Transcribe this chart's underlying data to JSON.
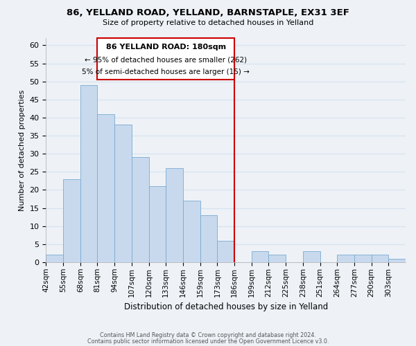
{
  "title": "86, YELLAND ROAD, YELLAND, BARNSTAPLE, EX31 3EF",
  "subtitle": "Size of property relative to detached houses in Yelland",
  "xlabel": "Distribution of detached houses by size in Yelland",
  "ylabel": "Number of detached properties",
  "bar_labels": [
    "42sqm",
    "55sqm",
    "68sqm",
    "81sqm",
    "94sqm",
    "107sqm",
    "120sqm",
    "133sqm",
    "146sqm",
    "159sqm",
    "173sqm",
    "186sqm",
    "199sqm",
    "212sqm",
    "225sqm",
    "238sqm",
    "251sqm",
    "264sqm",
    "277sqm",
    "290sqm",
    "303sqm"
  ],
  "bar_values": [
    2,
    23,
    49,
    41,
    38,
    29,
    21,
    26,
    17,
    13,
    6,
    0,
    3,
    2,
    0,
    3,
    0,
    2,
    2,
    2,
    1
  ],
  "bar_color": "#c8d9ee",
  "bar_edge_color": "#7aaad0",
  "background_color": "#eef2f7",
  "grid_color": "#d8e4f0",
  "vline_index": 11,
  "annotation_title": "86 YELLAND ROAD: 180sqm",
  "annotation_line1": "← 95% of detached houses are smaller (262)",
  "annotation_line2": "5% of semi-detached houses are larger (15) →",
  "footer1": "Contains HM Land Registry data © Crown copyright and database right 2024.",
  "footer2": "Contains public sector information licensed under the Open Government Licence v3.0.",
  "ylim": [
    0,
    62
  ],
  "yticks": [
    0,
    5,
    10,
    15,
    20,
    25,
    30,
    35,
    40,
    45,
    50,
    55,
    60
  ]
}
